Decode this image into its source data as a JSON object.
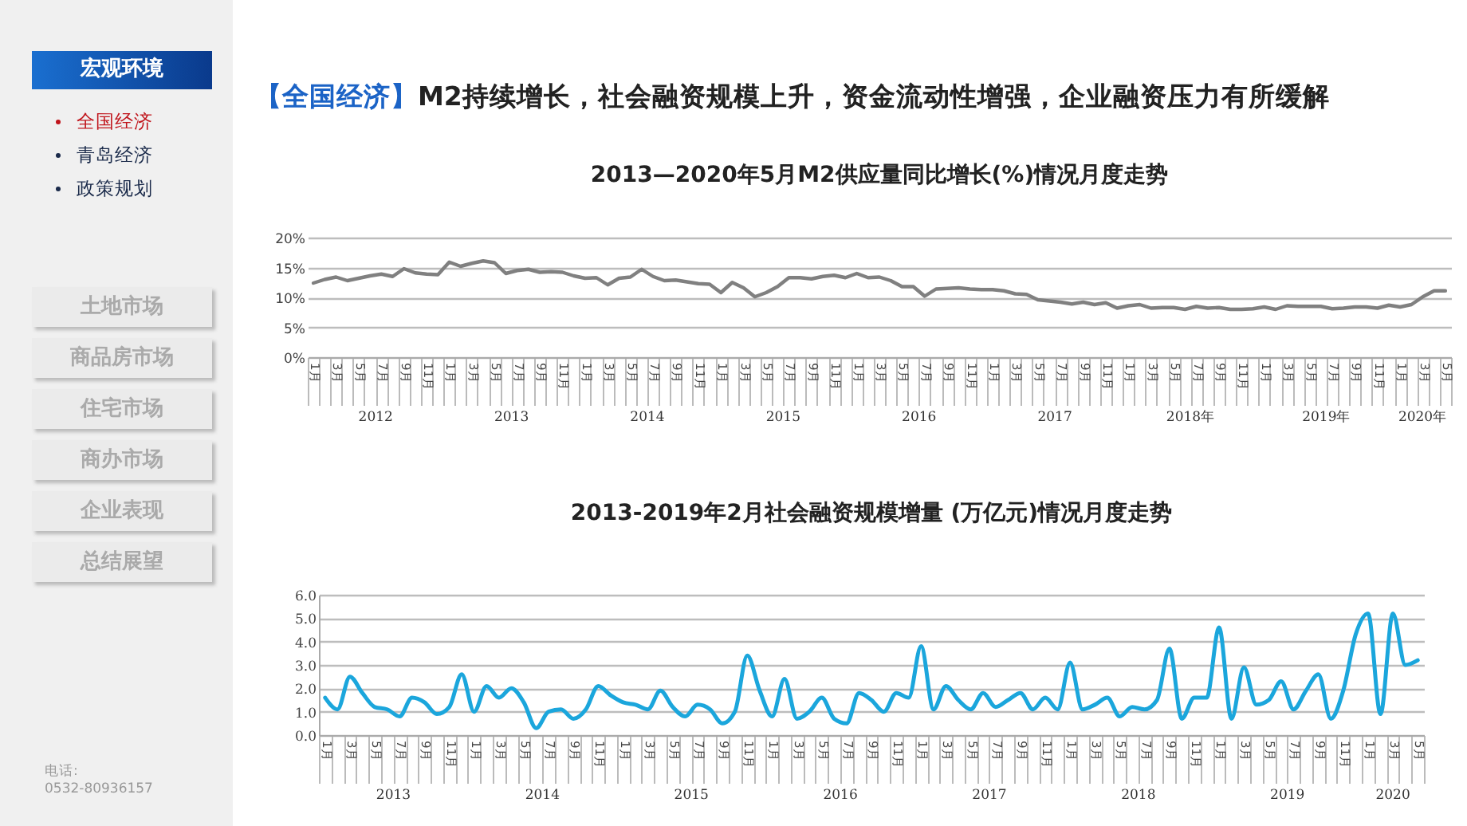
{
  "chart_data": [
    {
      "type": "other",
      "title": "【全国经济】",
      "subtitle": "M2持续增长，社会融资规模上升，资金流动性增强，企业融资压力有所缓解",
      "annotations": [
        "宏观环境",
        "全国经济",
        "青岛经济",
        "政策规划",
        "土地市场",
        "商品房市场",
        "住宅市场",
        "商办市场",
        "企业表现",
        "总结展望",
        "电话:",
        "0532-80936157"
      ]
    },
    {
      "type": "line",
      "title": "2013—2020年5月M2供应量同比增长(%)情况月度走势",
      "categories": [
        "1月",
        null,
        "3月",
        null,
        "5月",
        null,
        "7月",
        null,
        "9月",
        null,
        "11月",
        null,
        "1月",
        null,
        "3月",
        null,
        "5月",
        null,
        "7月",
        null,
        "9月",
        null,
        "11月",
        null,
        "1月",
        null,
        "3月",
        null,
        "5月",
        null,
        "7月",
        null,
        "9月",
        null,
        "11月",
        null,
        "1月",
        null,
        "3月",
        null,
        "5月",
        null,
        "7月",
        null,
        "9月",
        null,
        "11月",
        null,
        "1月",
        null,
        "3月",
        null,
        "5月",
        null,
        "7月",
        null,
        "9月",
        null,
        "11月",
        null,
        "1月",
        null,
        "3月",
        null,
        "5月",
        null,
        "7月",
        null,
        "9月",
        null,
        "11月",
        null,
        "1月",
        null,
        "3月",
        null,
        "5月",
        null,
        "7月",
        null,
        "9月",
        null,
        "11月",
        null,
        "1月",
        null,
        "3月",
        null,
        "5月",
        null,
        "7月",
        null,
        "9月",
        null,
        "11月",
        null,
        "1月",
        null,
        "3月",
        null,
        "5月"
      ],
      "series": [
        {
          "color": "#808080",
          "values": [
            12.4,
            13.0,
            13.4,
            12.8,
            13.2,
            13.6,
            13.9,
            13.5,
            14.8,
            14.1,
            13.9,
            13.8,
            15.9,
            15.2,
            15.7,
            16.1,
            15.8,
            14.0,
            14.5,
            14.7,
            14.2,
            14.3,
            14.2,
            13.6,
            13.2,
            13.3,
            12.1,
            13.2,
            13.4,
            14.7,
            13.5,
            12.8,
            12.9,
            12.6,
            12.3,
            12.2,
            10.8,
            12.5,
            11.6,
            10.1,
            10.8,
            11.8,
            13.3,
            13.3,
            13.1,
            13.5,
            13.7,
            13.3,
            14.0,
            13.3,
            13.4,
            12.8,
            11.8,
            11.8,
            10.2,
            11.4,
            11.5,
            11.6,
            11.4,
            11.3,
            11.3,
            11.1,
            10.6,
            10.5,
            9.6,
            9.4,
            9.2,
            8.9,
            9.2,
            8.8,
            9.1,
            8.2,
            8.6,
            8.8,
            8.2,
            8.3,
            8.3,
            8.0,
            8.5,
            8.2,
            8.3,
            8.0,
            8.0,
            8.1,
            8.4,
            8.0,
            8.6,
            8.5,
            8.5,
            8.5,
            8.1,
            8.2,
            8.4,
            8.4,
            8.2,
            8.7,
            8.4,
            8.8,
            10.1,
            11.1,
            11.1
          ]
        }
      ],
      "ylim": [
        0,
        20
      ],
      "yticks": [
        {
          "value": 0,
          "label": "0%"
        },
        {
          "value": 5,
          "label": "5%"
        },
        {
          "value": 10,
          "label": "10%"
        },
        {
          "value": 15,
          "label": "15%"
        },
        {
          "value": 20,
          "label": "20%"
        }
      ],
      "grid": "y",
      "annotations": [
        "2012",
        "2013",
        "2014",
        "2015",
        "2016",
        "2017",
        "2018年",
        "2019年",
        "2020年"
      ]
    },
    {
      "type": "line",
      "title": "2013-2019年2月社会融资规模增量 (万亿元)情况月度走势",
      "categories": [
        "1月",
        null,
        "3月",
        null,
        "5月",
        null,
        "7月",
        null,
        "9月",
        null,
        "11月",
        null,
        "1月",
        null,
        "3月",
        null,
        "5月",
        null,
        "7月",
        null,
        "9月",
        null,
        "11月",
        null,
        "1月",
        null,
        "3月",
        null,
        "5月",
        null,
        "7月",
        null,
        "9月",
        null,
        "11月",
        null,
        "1月",
        null,
        "3月",
        null,
        "5月",
        null,
        "7月",
        null,
        "9月",
        null,
        "11月",
        null,
        "1月",
        null,
        "3月",
        null,
        "5月",
        null,
        "7月",
        null,
        "9月",
        null,
        "11月",
        null,
        "1月",
        null,
        "3月",
        null,
        "5月",
        null,
        "7月",
        null,
        "9月",
        null,
        "11月",
        null,
        "1月",
        null,
        "3月",
        null,
        "5月",
        null,
        "7月",
        null,
        "9月",
        null,
        "11月",
        null,
        "1月",
        null,
        "3月",
        null,
        "5月"
      ],
      "series": [
        {
          "color": "#1ba6dc",
          "values": [
            1.6,
            1.1,
            2.5,
            1.8,
            1.2,
            1.1,
            0.8,
            1.6,
            1.4,
            0.9,
            1.2,
            2.6,
            1.0,
            2.1,
            1.6,
            2.0,
            1.4,
            0.3,
            1.0,
            1.1,
            0.7,
            1.1,
            2.1,
            1.7,
            1.4,
            1.3,
            1.1,
            1.9,
            1.2,
            0.8,
            1.3,
            1.1,
            0.5,
            1.0,
            3.4,
            1.9,
            0.8,
            2.4,
            0.7,
            1.0,
            1.6,
            0.7,
            0.5,
            1.8,
            1.5,
            1.0,
            1.8,
            1.6,
            3.8,
            1.1,
            2.1,
            1.5,
            1.1,
            1.8,
            1.2,
            1.5,
            1.8,
            1.1,
            1.6,
            1.1,
            3.1,
            1.1,
            1.3,
            1.6,
            0.8,
            1.2,
            1.1,
            1.5,
            3.7,
            0.7,
            1.6,
            1.6,
            4.6,
            0.7,
            2.9,
            1.3,
            1.5,
            2.3,
            1.1,
            1.9,
            2.6,
            0.7,
            1.9,
            4.3,
            5.2,
            0.9,
            5.2,
            3.0,
            3.2
          ]
        }
      ],
      "ylim": [
        0,
        6
      ],
      "yticks": [
        {
          "value": 0,
          "label": "0.0"
        },
        {
          "value": 1,
          "label": "1.0"
        },
        {
          "value": 2,
          "label": "2.0"
        },
        {
          "value": 3,
          "label": "3.0"
        },
        {
          "value": 4,
          "label": "4.0"
        },
        {
          "value": 5,
          "label": "5.0"
        },
        {
          "value": 6,
          "label": "6.0"
        }
      ],
      "grid": "y",
      "annotations": [
        "2013",
        "2014",
        "2015",
        "2016",
        "2017",
        "2018",
        "2019",
        "2020"
      ]
    }
  ]
}
